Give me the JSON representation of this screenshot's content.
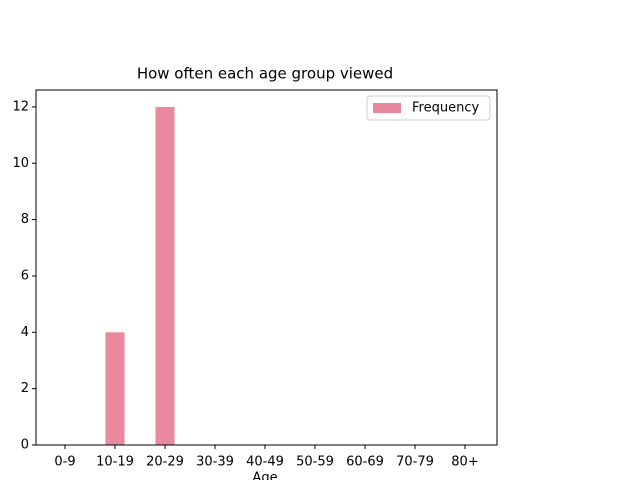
{
  "chart_data": {
    "type": "bar",
    "title": "How often each age group viewed",
    "x_label": "Age",
    "categories": [
      "0-9",
      "10-19",
      "20-29",
      "30-39",
      "40-49",
      "50-59",
      "60-69",
      "70-79",
      "80+"
    ],
    "series": [
      {
        "name": "Frequency",
        "color": "#e8879c",
        "values": [
          0,
          4,
          12,
          0,
          0,
          0,
          0,
          0,
          0
        ]
      }
    ],
    "ylim": [
      0,
      12.6
    ],
    "yticks": [
      0,
      2,
      4,
      6,
      8,
      10,
      12
    ],
    "grid": false,
    "legend": "upper right"
  }
}
